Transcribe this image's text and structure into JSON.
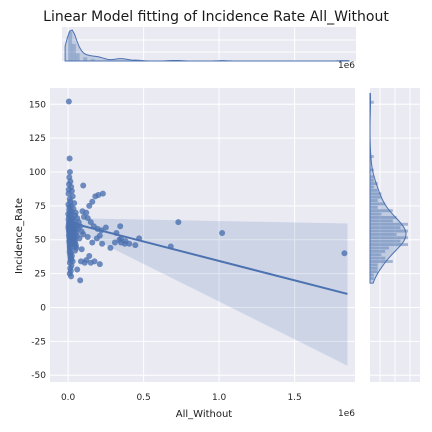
{
  "chart_data": {
    "type": "scatter",
    "title": "Linear Model fitting of Incidence Rate All_Without",
    "xlabel": "All_Without",
    "ylabel": "Incidence_Rate",
    "x_offset_label": "1e6",
    "xlim": [
      -120000,
      1900000
    ],
    "ylim": [
      -55,
      162
    ],
    "xticks": [
      0,
      500000,
      1000000,
      1500000
    ],
    "xtick_labels": [
      "0.0",
      "0.5",
      "1.0",
      "1.5"
    ],
    "yticks": [
      -50,
      -25,
      0,
      25,
      50,
      75,
      100,
      125,
      150
    ],
    "grid": true,
    "point_color": "#4c72b0",
    "regression": {
      "x0": 0,
      "y0": 63,
      "x1": 1850000,
      "y1": 10,
      "ci_upper_at_x0": 66,
      "ci_lower_at_x0": 60,
      "ci_upper_at_x1": 62,
      "ci_lower_at_x1": -43
    },
    "points": [
      [
        5000,
        152
      ],
      [
        10000,
        110
      ],
      [
        12000,
        100
      ],
      [
        8000,
        96
      ],
      [
        15000,
        93
      ],
      [
        6000,
        91
      ],
      [
        20000,
        89
      ],
      [
        4000,
        87
      ],
      [
        25000,
        86
      ],
      [
        3000,
        84
      ],
      [
        30000,
        82
      ],
      [
        11000,
        80
      ],
      [
        14000,
        78
      ],
      [
        40000,
        77
      ],
      [
        2000,
        76
      ],
      [
        18000,
        75
      ],
      [
        9000,
        74
      ],
      [
        35000,
        73
      ],
      [
        7000,
        72
      ],
      [
        22000,
        71
      ],
      [
        13000,
        70
      ],
      [
        50000,
        70
      ],
      [
        1000,
        69
      ],
      [
        16000,
        68
      ],
      [
        45000,
        68
      ],
      [
        6500,
        67
      ],
      [
        28000,
        66
      ],
      [
        60000,
        66
      ],
      [
        2500,
        65
      ],
      [
        19000,
        65
      ],
      [
        38000,
        64
      ],
      [
        5500,
        63
      ],
      [
        24000,
        63
      ],
      [
        70000,
        63
      ],
      [
        9500,
        62
      ],
      [
        32000,
        62
      ],
      [
        3500,
        61
      ],
      [
        17000,
        61
      ],
      [
        55000,
        61
      ],
      [
        8500,
        60
      ],
      [
        27000,
        60
      ],
      [
        80000,
        60
      ],
      [
        1500,
        59
      ],
      [
        21000,
        59
      ],
      [
        42000,
        59
      ],
      [
        7500,
        58
      ],
      [
        29000,
        58
      ],
      [
        65000,
        58
      ],
      [
        4500,
        57
      ],
      [
        23000,
        57
      ],
      [
        48000,
        57
      ],
      [
        10500,
        56
      ],
      [
        33000,
        56
      ],
      [
        90000,
        56
      ],
      [
        6200,
        55
      ],
      [
        26000,
        55
      ],
      [
        52000,
        55
      ],
      [
        12500,
        54
      ],
      [
        37000,
        54
      ],
      [
        100000,
        54
      ],
      [
        5200,
        53
      ],
      [
        31000,
        53
      ],
      [
        58000,
        53
      ],
      [
        15500,
        52
      ],
      [
        41000,
        52
      ],
      [
        8200,
        51
      ],
      [
        34000,
        51
      ],
      [
        75000,
        51
      ],
      [
        11500,
        50
      ],
      [
        44000,
        50
      ],
      [
        7200,
        49
      ],
      [
        36000,
        49
      ],
      [
        14500,
        48
      ],
      [
        47000,
        48
      ],
      [
        9200,
        47
      ],
      [
        39000,
        47
      ],
      [
        13500,
        46
      ],
      [
        51000,
        46
      ],
      [
        10200,
        45
      ],
      [
        43000,
        45
      ],
      [
        12200,
        44
      ],
      [
        54000,
        44
      ],
      [
        11200,
        43
      ],
      [
        46000,
        42
      ],
      [
        9800,
        41
      ],
      [
        18000,
        40
      ],
      [
        13000,
        39
      ],
      [
        25000,
        38
      ],
      [
        15000,
        37
      ],
      [
        20000,
        36
      ],
      [
        16500,
        35
      ],
      [
        30000,
        34
      ],
      [
        12000,
        33
      ],
      [
        22000,
        31
      ],
      [
        14000,
        29
      ],
      [
        17500,
        27
      ],
      [
        11000,
        25
      ],
      [
        19500,
        23
      ],
      [
        85000,
        34
      ],
      [
        110000,
        33
      ],
      [
        120000,
        35
      ],
      [
        150000,
        33
      ],
      [
        175000,
        34
      ],
      [
        210000,
        32
      ],
      [
        120000,
        70
      ],
      [
        140000,
        75
      ],
      [
        160000,
        78
      ],
      [
        180000,
        82
      ],
      [
        200000,
        83
      ],
      [
        230000,
        84
      ],
      [
        130000,
        66
      ],
      [
        150000,
        63
      ],
      [
        170000,
        60
      ],
      [
        195000,
        58
      ],
      [
        220000,
        57
      ],
      [
        250000,
        59
      ],
      [
        130000,
        52
      ],
      [
        160000,
        48
      ],
      [
        190000,
        51
      ],
      [
        225000,
        47
      ],
      [
        280000,
        44
      ],
      [
        310000,
        48
      ],
      [
        340000,
        50
      ],
      [
        350000,
        48
      ],
      [
        380000,
        49
      ],
      [
        405000,
        47
      ],
      [
        445000,
        46
      ],
      [
        470000,
        51
      ],
      [
        320000,
        55
      ],
      [
        345000,
        60
      ],
      [
        350000,
        51
      ],
      [
        375000,
        47
      ],
      [
        100000,
        90
      ],
      [
        210000,
        53
      ],
      [
        80000,
        20
      ],
      [
        140000,
        38
      ],
      [
        60000,
        28
      ],
      [
        90000,
        43
      ],
      [
        95000,
        71
      ],
      [
        105000,
        67
      ],
      [
        730000,
        63
      ],
      [
        680000,
        45
      ],
      [
        1020000,
        55
      ],
      [
        1830000,
        40
      ]
    ]
  }
}
